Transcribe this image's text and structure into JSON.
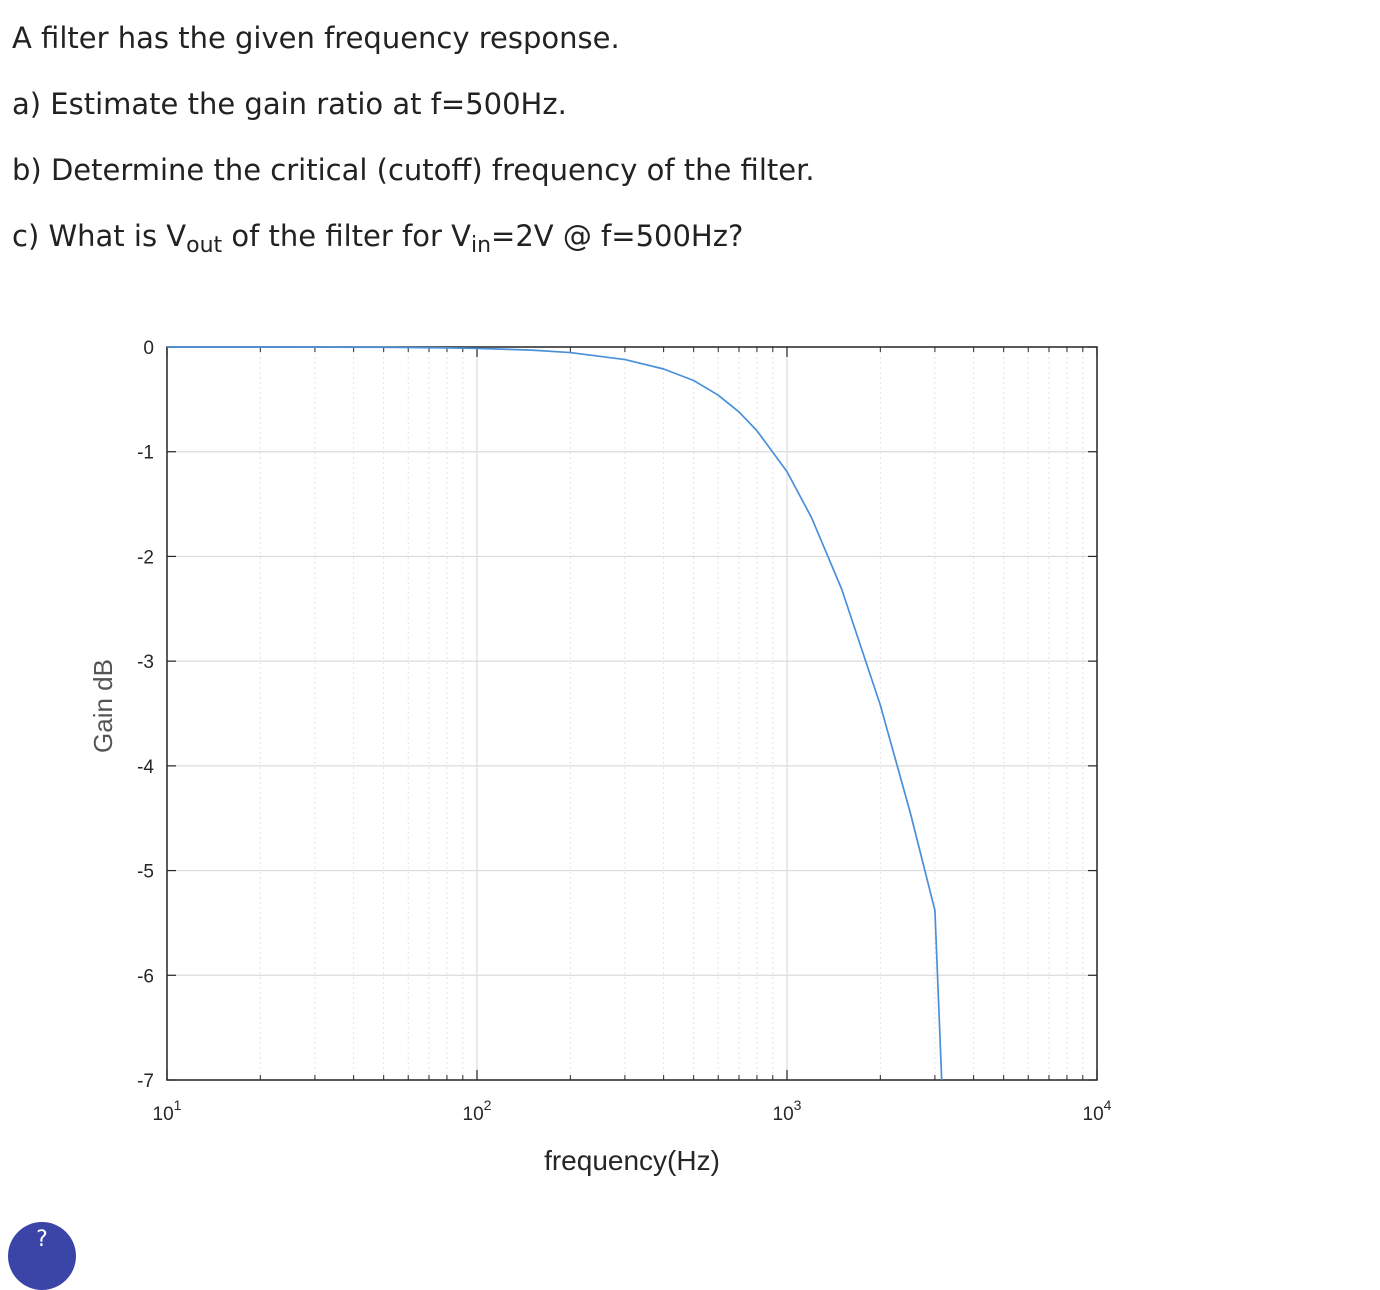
{
  "question": {
    "line1": "A filter has the given frequency response.",
    "line2": "a) Estimate the gain ratio at f=500Hz.",
    "line3": "b) Determine the critical (cutoff) frequency of the filter.",
    "line4_pre": "c) What is V",
    "line4_sub1": "out",
    "line4_mid": " of the filter for V",
    "line4_sub2": "in",
    "line4_post": "=2V @ f=500Hz?"
  },
  "chart_data": {
    "type": "line",
    "title": "",
    "xlabel": "frequency(Hz)",
    "ylabel": "Gain dB",
    "x_scale": "log",
    "xlim": [
      10,
      10000
    ],
    "ylim": [
      -7,
      0
    ],
    "grid": true,
    "x_ticks": [
      10,
      100,
      1000,
      10000
    ],
    "x_tick_labels": [
      {
        "base": "10",
        "exp": "1"
      },
      {
        "base": "10",
        "exp": "2"
      },
      {
        "base": "10",
        "exp": "3"
      },
      {
        "base": "10",
        "exp": "4"
      }
    ],
    "y_ticks": [
      0,
      -1,
      -2,
      -3,
      -4,
      -5,
      -6,
      -7
    ],
    "y_tick_labels": [
      "0",
      "-1",
      "-2",
      "-3",
      "-4",
      "-5",
      "-6",
      "-7"
    ],
    "series": [
      {
        "color": "#4a90d9",
        "x": [
          10,
          20,
          50,
          80,
          100,
          150,
          200,
          300,
          400,
          500,
          600,
          700,
          800,
          1000,
          1200,
          1500,
          2000,
          2500,
          3000,
          3155
        ],
        "y": [
          0,
          0,
          -0.003,
          -0.008,
          -0.013,
          -0.03,
          -0.053,
          -0.12,
          -0.21,
          -0.32,
          -0.46,
          -0.62,
          -0.8,
          -1.19,
          -1.63,
          -2.31,
          -3.42,
          -4.45,
          -5.38,
          -7.0
        ]
      }
    ]
  },
  "avatar_text": "?"
}
